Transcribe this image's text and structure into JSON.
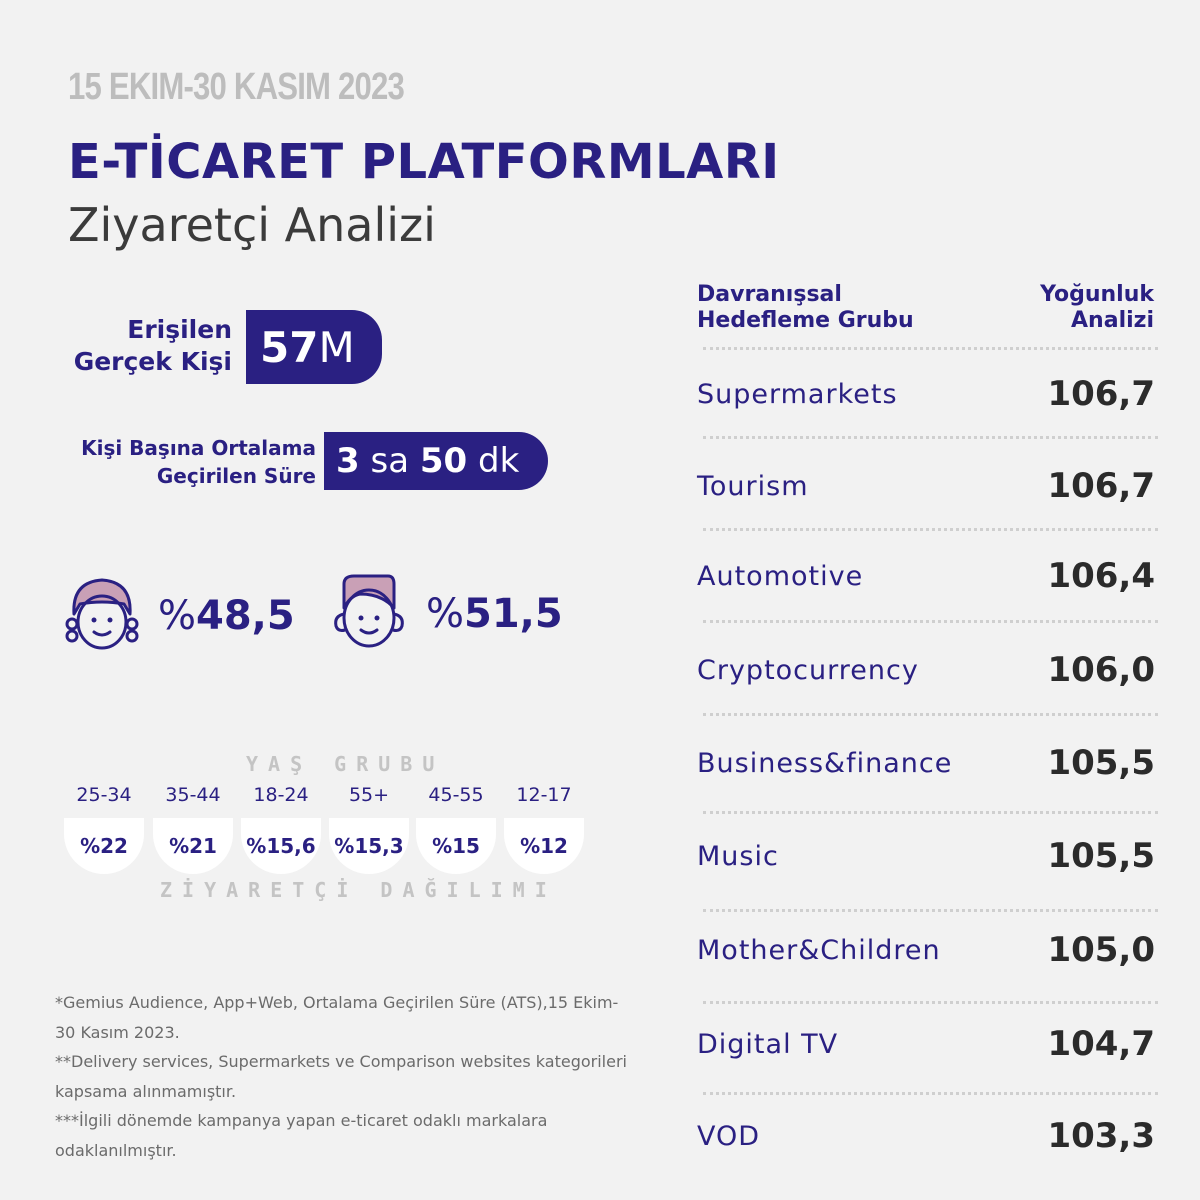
{
  "header": {
    "date_range": "15 EKIM-30 KASIM 2023",
    "title": "E-TİCARET PLATFORMLARI",
    "subtitle": "Ziyaretçi Analizi"
  },
  "reach": {
    "label_line1": "Erişilen",
    "label_line2": "Gerçek Kişi",
    "value_number": "57",
    "value_unit": "M"
  },
  "time": {
    "label_line1": "Kişi Başına Ortalama",
    "label_line2": "Geçirilen Süre",
    "hours": "3",
    "hours_unit": "sa",
    "minutes": "50",
    "minutes_unit": "dk"
  },
  "gender": {
    "female_symbol": "%",
    "female_value": "48,5",
    "male_symbol": "%",
    "male_value": "51,5"
  },
  "age": {
    "title": "YAŞ GRUBU",
    "distribution_title": "ZİYARETÇİ DAĞILIMI",
    "groups": [
      {
        "range": "25-34",
        "pct": "%22"
      },
      {
        "range": "35-44",
        "pct": "%21"
      },
      {
        "range": "18-24",
        "pct": "%15,6"
      },
      {
        "range": "55+",
        "pct": "%15,3"
      },
      {
        "range": "45-55",
        "pct": "%15"
      },
      {
        "range": "12-17",
        "pct": "%12"
      }
    ]
  },
  "notes": {
    "note1": "*Gemius Audience, App+Web, Ortalama Geçirilen Süre (ATS),15 Ekim-30 Kasım 2023.",
    "note2": "**Delivery services, Supermarkets ve Comparison websites kategorileri kapsama alınmamıştır.",
    "note3": "***İlgili dönemde kampanya yapan e-ticaret odaklı markalara odaklanılmıştır."
  },
  "table": {
    "col1_line1": "Davranışsal",
    "col1_line2": "Hedefleme Grubu",
    "col2_line1": "Yoğunluk",
    "col2_line2": "Analizi",
    "rows": [
      {
        "category": "Supermarkets",
        "value": "106,7"
      },
      {
        "category": "Tourism",
        "value": "106,7"
      },
      {
        "category": "Automotive",
        "value": "106,4"
      },
      {
        "category": "Cryptocurrency",
        "value": "106,0"
      },
      {
        "category": "Business&finance",
        "value": "105,5"
      },
      {
        "category": "Music",
        "value": "105,5"
      },
      {
        "category": "Mother&Children",
        "value": "105,0"
      },
      {
        "category": "Digital TV",
        "value": "104,7"
      },
      {
        "category": "VOD",
        "value": "103,3"
      }
    ]
  },
  "colors": {
    "brand": "#2a2082",
    "background": "#f2f2f2",
    "muted": "#bdbdbd",
    "hair": "#c9a0b6"
  }
}
